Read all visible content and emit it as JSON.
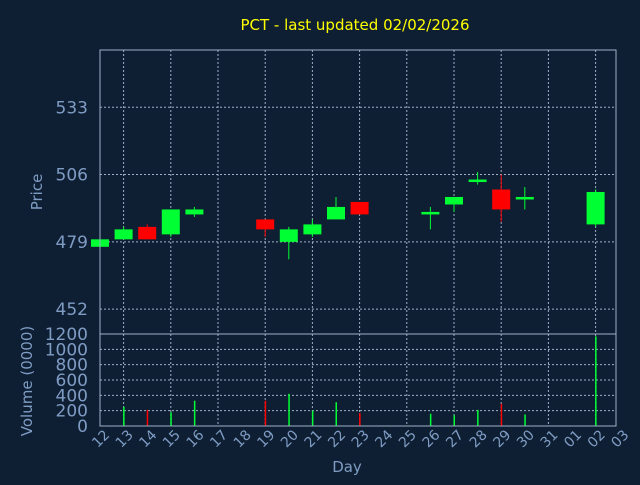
{
  "chart_data": {
    "type": "candlestick",
    "title": "PCT - last updated 02/02/2026",
    "xlabel": "Day",
    "colors": {
      "background": "#0f1f33",
      "up": "#00ff33",
      "down": "#ff0000",
      "grid": "#9db0c9",
      "text": "#7f9cc4",
      "title": "#ffff00"
    },
    "x_ticks": [
      "12",
      "13",
      "14",
      "15",
      "16",
      "17",
      "18",
      "19",
      "20",
      "21",
      "22",
      "23",
      "24",
      "25",
      "26",
      "27",
      "28",
      "29",
      "30",
      "31",
      "01",
      "02",
      "03"
    ],
    "price_panel": {
      "ylabel": "Price",
      "ylim": [
        442,
        556
      ],
      "yticks": [
        "452",
        "479",
        "506",
        "533"
      ],
      "candles": [
        {
          "day": "12",
          "open": 477,
          "high": 480,
          "low": 476,
          "close": 480
        },
        {
          "day": "13",
          "open": 480,
          "high": 485,
          "low": 480,
          "close": 484
        },
        {
          "day": "14",
          "open": 485,
          "high": 486,
          "low": 480,
          "close": 480
        },
        {
          "day": "15",
          "open": 482,
          "high": 492,
          "low": 481,
          "close": 492
        },
        {
          "day": "16",
          "open": 490,
          "high": 493,
          "low": 489,
          "close": 492
        },
        {
          "day": "19",
          "open": 488,
          "high": 488,
          "low": 481,
          "close": 484
        },
        {
          "day": "20",
          "open": 479,
          "high": 485,
          "low": 472,
          "close": 484
        },
        {
          "day": "21",
          "open": 482,
          "high": 488,
          "low": 481,
          "close": 486
        },
        {
          "day": "22",
          "open": 488,
          "high": 497,
          "low": 488,
          "close": 493
        },
        {
          "day": "23",
          "open": 495,
          "high": 495,
          "low": 490,
          "close": 490
        },
        {
          "day": "26",
          "open": 490,
          "high": 493,
          "low": 484,
          "close": 491
        },
        {
          "day": "27",
          "open": 494,
          "high": 497,
          "low": 491,
          "close": 497
        },
        {
          "day": "28",
          "open": 503,
          "high": 507,
          "low": 502,
          "close": 504
        },
        {
          "day": "29",
          "open": 500,
          "high": 506,
          "low": 487,
          "close": 492
        },
        {
          "day": "30",
          "open": 496,
          "high": 501,
          "low": 492,
          "close": 497
        },
        {
          "day": "02",
          "open": 486,
          "high": 500,
          "low": 485,
          "close": 499
        }
      ]
    },
    "volume_panel": {
      "ylabel": "Volume (0000)",
      "ylim": [
        0,
        1200
      ],
      "yticks": [
        "0",
        "200",
        "400",
        "600",
        "800",
        "1000",
        "1200"
      ],
      "bars": [
        {
          "day": "13",
          "value": 250,
          "dir": "up"
        },
        {
          "day": "14",
          "value": 210,
          "dir": "down"
        },
        {
          "day": "15",
          "value": 180,
          "dir": "up"
        },
        {
          "day": "16",
          "value": 330,
          "dir": "up"
        },
        {
          "day": "19",
          "value": 330,
          "dir": "down"
        },
        {
          "day": "20",
          "value": 420,
          "dir": "up"
        },
        {
          "day": "21",
          "value": 200,
          "dir": "up"
        },
        {
          "day": "22",
          "value": 310,
          "dir": "up"
        },
        {
          "day": "23",
          "value": 170,
          "dir": "down"
        },
        {
          "day": "26",
          "value": 160,
          "dir": "up"
        },
        {
          "day": "27",
          "value": 140,
          "dir": "up"
        },
        {
          "day": "28",
          "value": 210,
          "dir": "up"
        },
        {
          "day": "29",
          "value": 290,
          "dir": "down"
        },
        {
          "day": "30",
          "value": 150,
          "dir": "up"
        },
        {
          "day": "02",
          "value": 1170,
          "dir": "up"
        }
      ]
    }
  }
}
